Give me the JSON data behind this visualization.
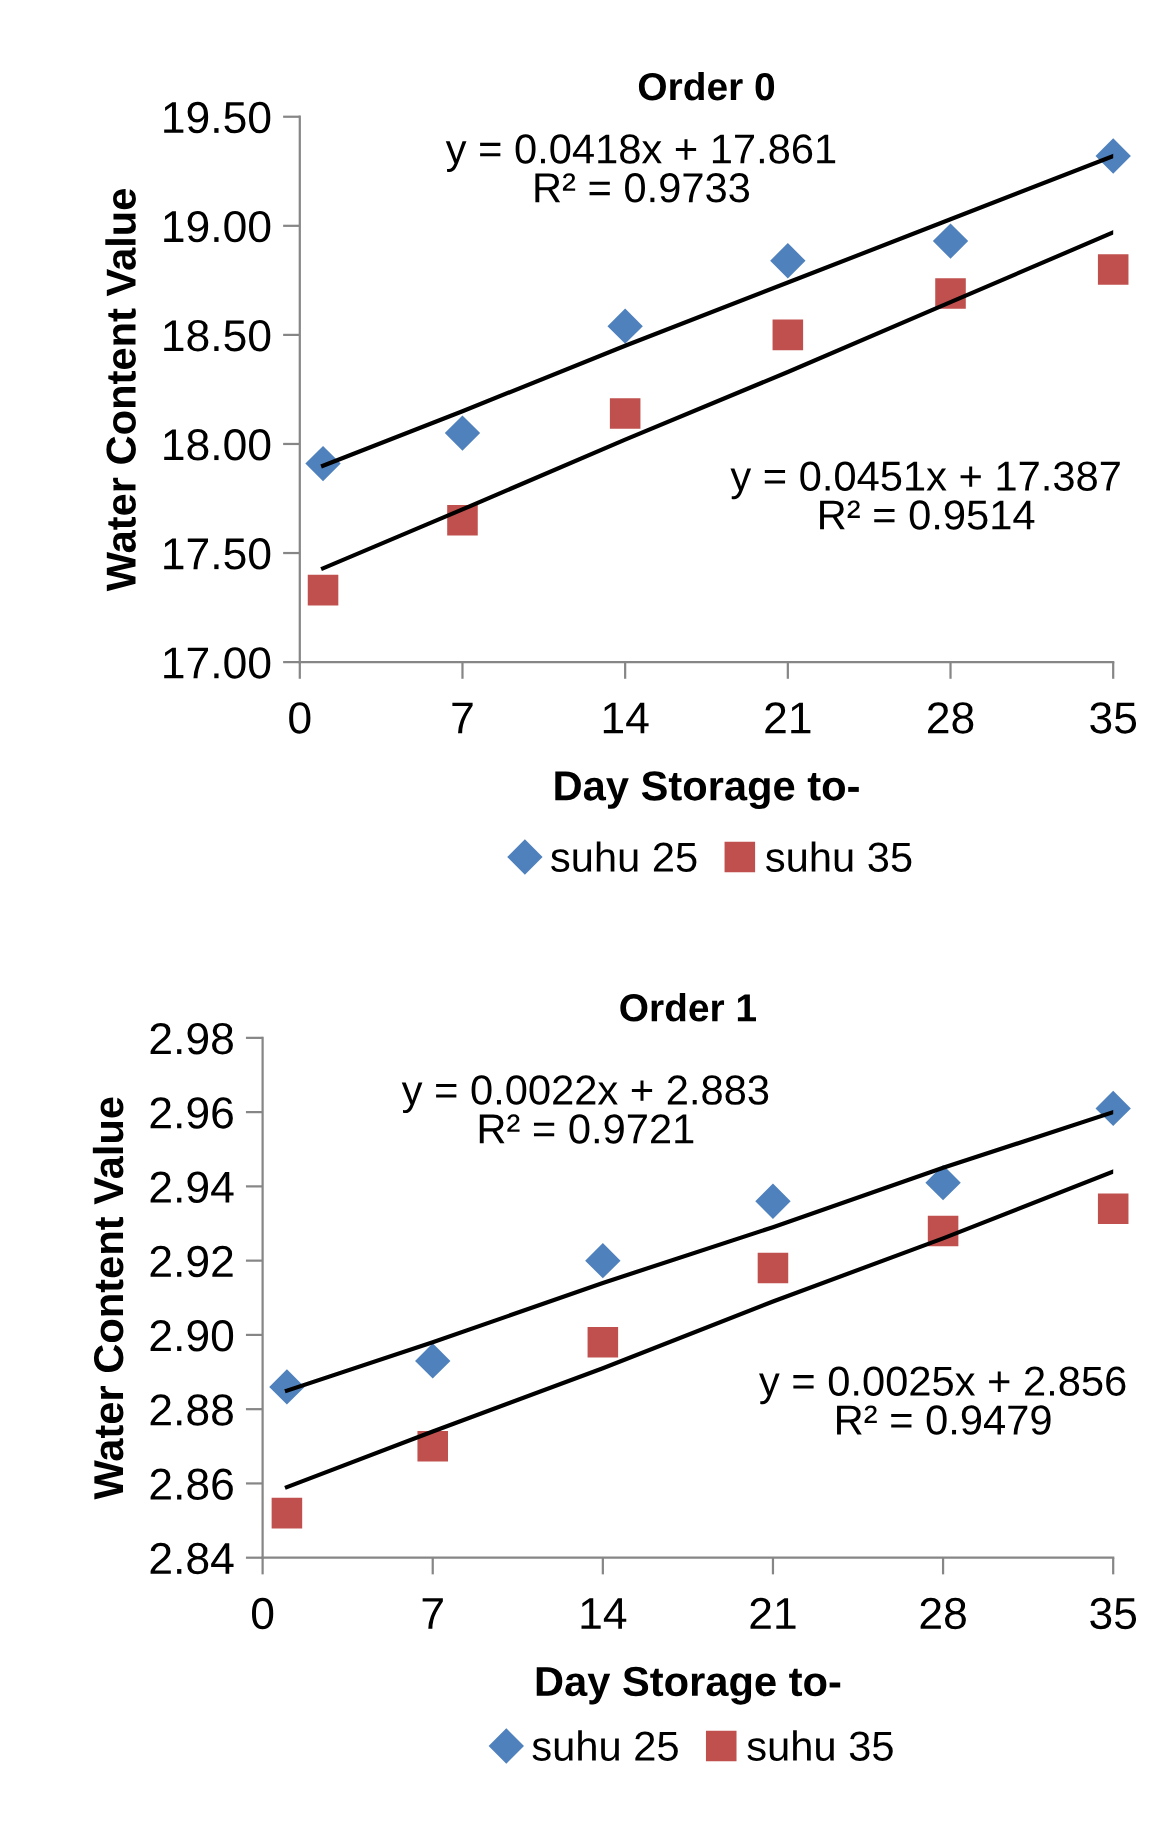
{
  "chart_data": [
    {
      "type": "scatter",
      "title": "Order 0",
      "xlabel": "Day Storage to-",
      "ylabel": "Water Content Value",
      "x": [
        1,
        7,
        14,
        21,
        28,
        35
      ],
      "series": [
        {
          "name": "suhu 25",
          "color": "#4f81bd",
          "marker": "diamond",
          "values": [
            17.91,
            18.05,
            18.54,
            18.84,
            18.93,
            19.32
          ]
        },
        {
          "name": "suhu 35",
          "color": "#c0504d",
          "marker": "square",
          "values": [
            17.33,
            17.65,
            18.14,
            18.5,
            18.69,
            18.8
          ]
        },
        {
          "type": "line",
          "color": "#000000",
          "values": [
            17.9,
            18.15,
            18.45,
            18.74,
            19.03,
            19.32
          ]
        },
        {
          "type": "line",
          "color": "#000000",
          "values": [
            17.43,
            17.7,
            18.02,
            18.33,
            18.65,
            18.97
          ]
        }
      ],
      "annotations": [
        "y = 0.0418x + 17.861\nR² = 0.9733",
        "y = 0.0451x + 17.387\nR² = 0.9514"
      ],
      "xlim": [
        0,
        35
      ],
      "xticks": [
        0,
        7,
        14,
        21,
        28,
        35
      ],
      "ylim": [
        17.0,
        19.5
      ],
      "yticks": [
        {
          "value": 17.0,
          "label": "17.00"
        },
        {
          "value": 17.5,
          "label": "17.50"
        },
        {
          "value": 18.0,
          "label": "18.00"
        },
        {
          "value": 18.5,
          "label": "18.50"
        },
        {
          "value": 19.0,
          "label": "19.00"
        },
        {
          "value": 19.5,
          "label": "19.50"
        }
      ],
      "legend": "bottom",
      "grid": false
    },
    {
      "type": "scatter",
      "title": "Order 1",
      "xlabel": "Day Storage to-",
      "ylabel": "Water Content Value",
      "x": [
        1,
        7,
        14,
        21,
        28,
        35
      ],
      "series": [
        {
          "name": "suhu 25",
          "color": "#4f81bd",
          "marker": "diamond",
          "values": [
            2.886,
            2.893,
            2.92,
            2.936,
            2.941,
            2.961
          ]
        },
        {
          "name": "suhu 35",
          "color": "#c0504d",
          "marker": "square",
          "values": [
            2.852,
            2.87,
            2.898,
            2.918,
            2.928,
            2.934
          ]
        },
        {
          "type": "line",
          "color": "#000000",
          "values": [
            2.885,
            2.898,
            2.914,
            2.929,
            2.945,
            2.96
          ]
        },
        {
          "type": "line",
          "color": "#000000",
          "values": [
            2.859,
            2.874,
            2.891,
            2.909,
            2.926,
            2.944
          ]
        }
      ],
      "annotations": [
        "y = 0.0022x + 2.883\nR² = 0.9721",
        "y = 0.0025x + 2.856\nR² = 0.9479"
      ],
      "xlim": [
        0,
        35
      ],
      "xticks": [
        0,
        7,
        14,
        21,
        28,
        35
      ],
      "ylim": [
        2.84,
        2.98
      ],
      "yticks": [
        {
          "value": 2.84,
          "label": "2.84"
        },
        {
          "value": 2.86,
          "label": "2.86"
        },
        {
          "value": 2.88,
          "label": "2.88"
        },
        {
          "value": 2.9,
          "label": "2.90"
        },
        {
          "value": 2.92,
          "label": "2.92"
        },
        {
          "value": 2.94,
          "label": "2.94"
        },
        {
          "value": 2.96,
          "label": "2.96"
        },
        {
          "value": 2.98,
          "label": "2.98"
        }
      ],
      "legend": "bottom",
      "grid": false
    }
  ]
}
